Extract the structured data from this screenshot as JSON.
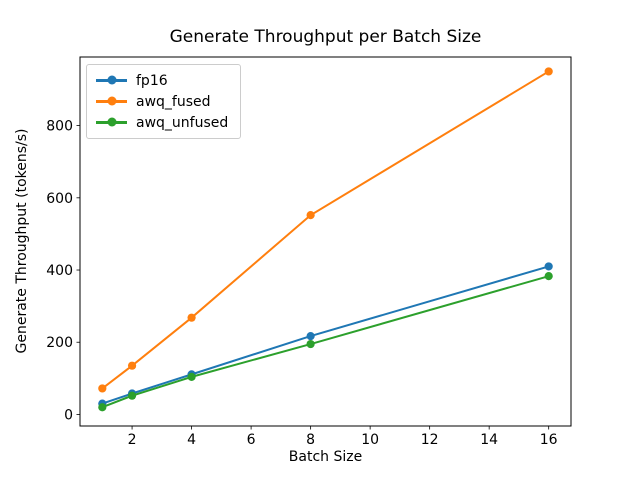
{
  "chart_data": {
    "type": "line",
    "title": "Generate Throughput per Batch Size",
    "xlabel": "Batch Size",
    "ylabel": "Generate Throughput (tokens/s)",
    "x": [
      1,
      2,
      4,
      8,
      16
    ],
    "series": [
      {
        "name": "fp16",
        "color": "#1f77b4",
        "values": [
          30,
          58,
          111,
          217,
          410
        ]
      },
      {
        "name": "awq_fused",
        "color": "#ff7f0e",
        "values": [
          72,
          135,
          268,
          552,
          950
        ]
      },
      {
        "name": "awq_unfused",
        "color": "#2ca02c",
        "values": [
          20,
          52,
          104,
          195,
          383
        ]
      }
    ],
    "xticks": [
      2,
      4,
      6,
      8,
      10,
      12,
      14,
      16
    ],
    "yticks": [
      0,
      200,
      400,
      600,
      800
    ],
    "xlim": [
      0.25,
      16.75
    ],
    "ylim": [
      -32,
      990
    ],
    "legend_position": "upper left",
    "grid": false,
    "marker": "o",
    "axis_color": "#000000",
    "background_color": "#ffffff"
  }
}
